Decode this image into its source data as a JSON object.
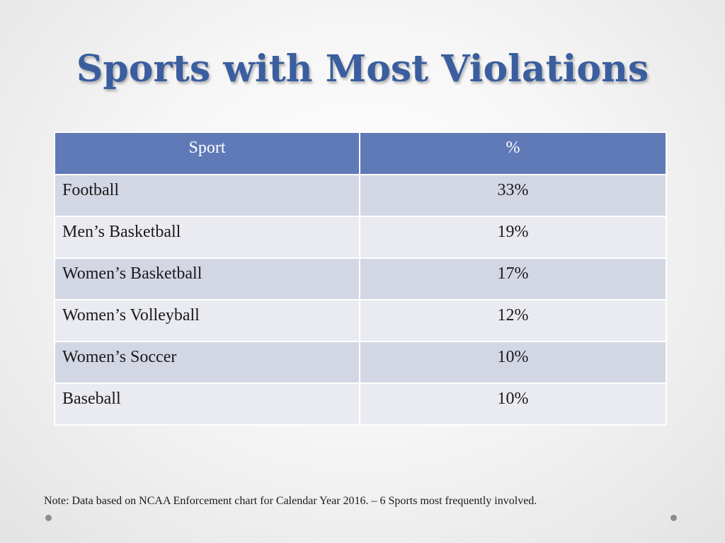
{
  "slide": {
    "title": "Sports with Most Violations",
    "note": "Note: Data based on NCAA Enforcement chart for Calendar Year 2016. – 6 Sports most frequently involved."
  },
  "table": {
    "headers": [
      "Sport",
      "%"
    ],
    "rows": [
      [
        "Football",
        "33%"
      ],
      [
        "Men’s Basketball",
        "19%"
      ],
      [
        "Women’s Basketball",
        "17%"
      ],
      [
        "Women’s Volleyball",
        "12%"
      ],
      [
        "Women’s Soccer",
        "10%"
      ],
      [
        "Baseball",
        "10%"
      ]
    ]
  },
  "colors": {
    "title": "#3a5e9e",
    "header_bg": "#5f7ab7",
    "row_odd": "#d3d7e4",
    "row_even": "#eaebf1"
  }
}
